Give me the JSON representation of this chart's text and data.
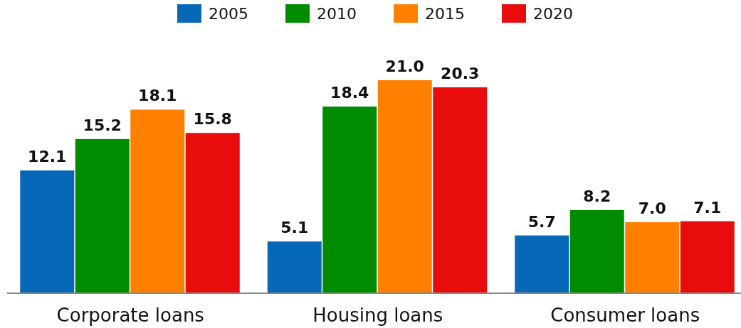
{
  "chart_data": {
    "type": "bar",
    "categories": [
      "Corporate loans",
      "Housing loans",
      "Consumer loans"
    ],
    "series": [
      {
        "name": "2005",
        "color": "#0868b8",
        "values": [
          12.1,
          5.1,
          5.7
        ],
        "value_labels": [
          "12.1",
          "5.1",
          "5.7"
        ]
      },
      {
        "name": "2010",
        "color": "#008c00",
        "values": [
          15.2,
          18.4,
          8.2
        ],
        "value_labels": [
          "15.2",
          "18.4",
          "8.2"
        ]
      },
      {
        "name": "2015",
        "color": "#ff8000",
        "values": [
          18.1,
          21.0,
          7.0
        ],
        "value_labels": [
          "18.1",
          "21.0",
          "7.0"
        ]
      },
      {
        "name": "2020",
        "color": "#e80c0c",
        "values": [
          15.8,
          20.3,
          7.1
        ],
        "value_labels": [
          "15.8",
          "20.3",
          "7.1"
        ]
      }
    ],
    "ylim": [
      0,
      21
    ],
    "legend": "top"
  }
}
